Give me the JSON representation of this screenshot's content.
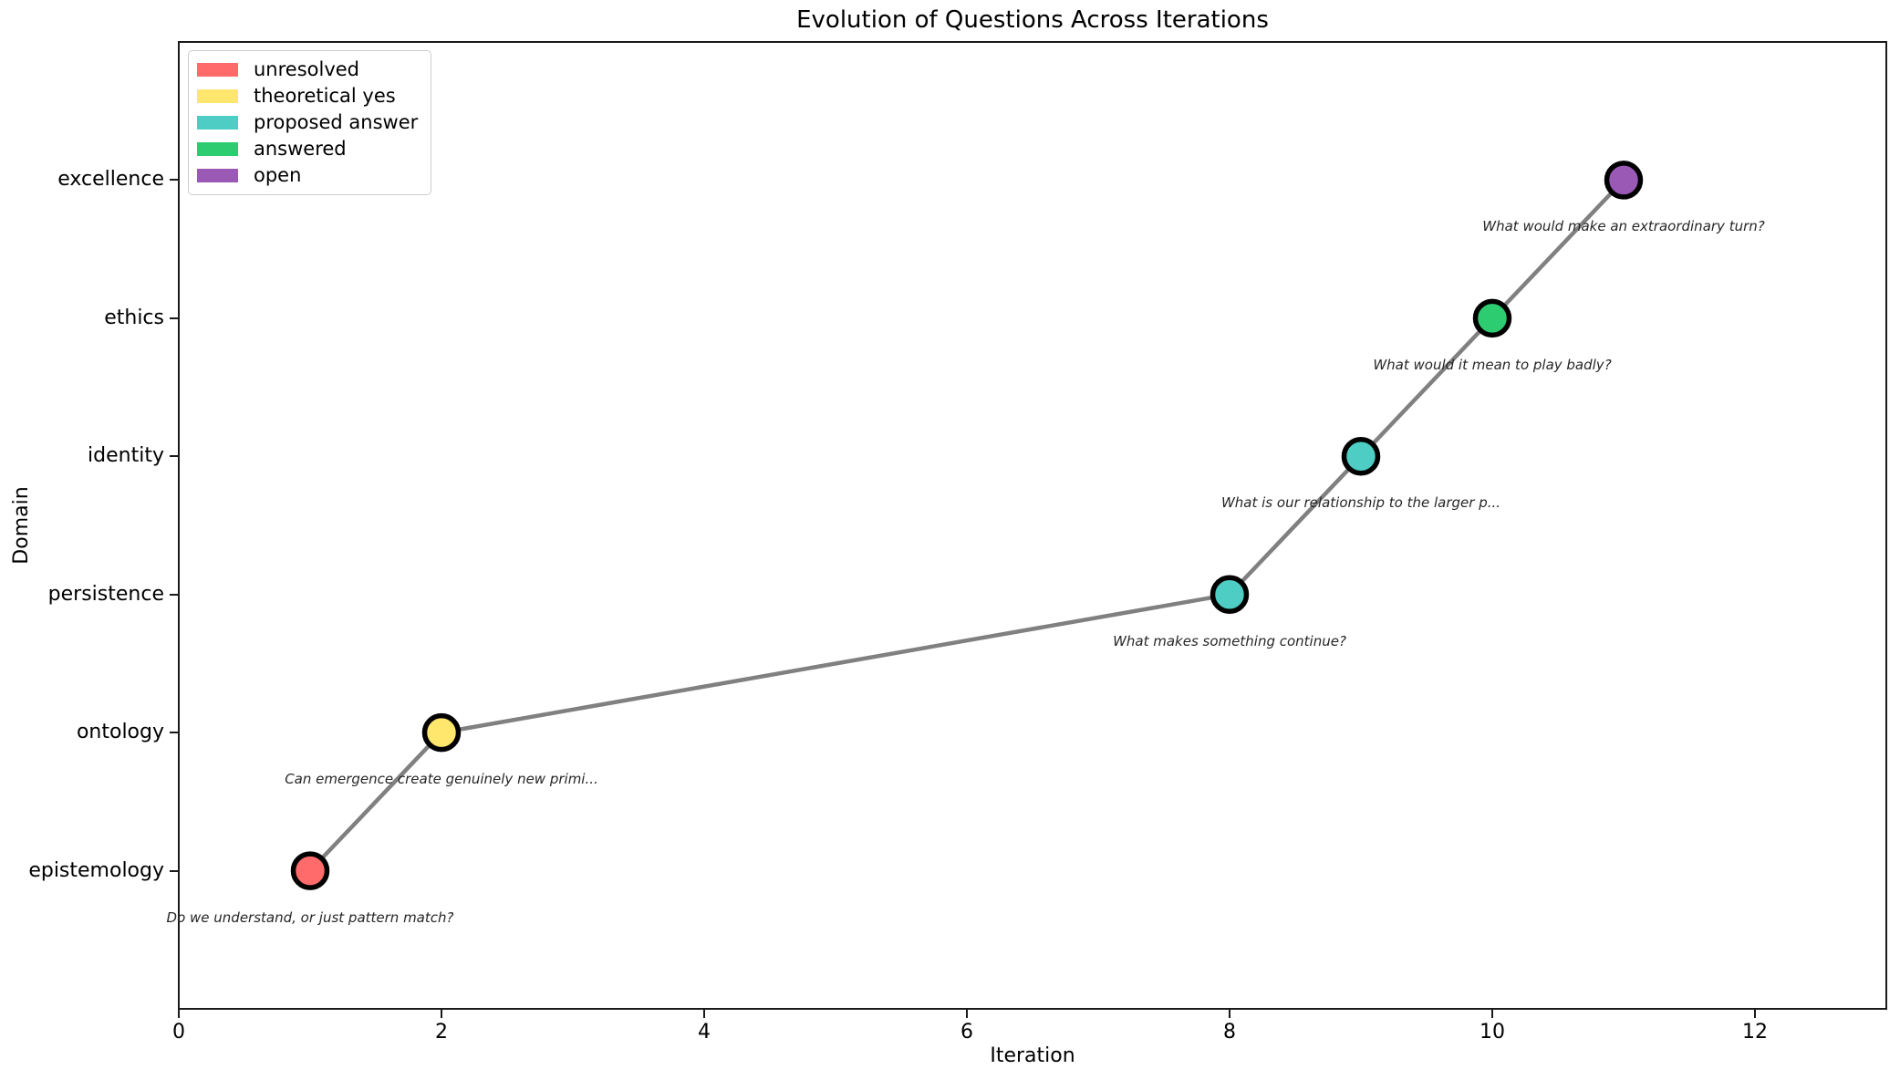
{
  "chart_data": {
    "type": "scatter",
    "title": "Evolution of Questions Across Iterations",
    "xlabel": "Iteration",
    "ylabel": "Domain",
    "xlim": [
      0,
      13
    ],
    "ylim": [
      -1,
      6
    ],
    "x_ticks": [
      0,
      2,
      4,
      6,
      8,
      10,
      12
    ],
    "y_categories": [
      "epistemology",
      "ontology",
      "persistence",
      "identity",
      "ethics",
      "excellence"
    ],
    "grid": false,
    "legend_position": "upper-left",
    "legend": [
      {
        "label": "unresolved",
        "color": "#FF6B6B"
      },
      {
        "label": "theoretical yes",
        "color": "#FFE66D"
      },
      {
        "label": "proposed answer",
        "color": "#4ECDC4"
      },
      {
        "label": "answered",
        "color": "#2ECC71"
      },
      {
        "label": "open",
        "color": "#9B59B6"
      }
    ],
    "line_color": "#808080",
    "marker_edge_color": "#000000",
    "annotation_color": "#262626",
    "points": [
      {
        "iteration": 1,
        "domain": "epistemology",
        "domain_index": 0,
        "status": "unresolved",
        "color": "#FF6B6B",
        "annotation": "Do we understand, or just pattern match?"
      },
      {
        "iteration": 2,
        "domain": "ontology",
        "domain_index": 1,
        "status": "theoretical yes",
        "color": "#FFE66D",
        "annotation": "Can emergence create genuinely new primi..."
      },
      {
        "iteration": 8,
        "domain": "persistence",
        "domain_index": 2,
        "status": "proposed answer",
        "color": "#4ECDC4",
        "annotation": "What makes something continue?"
      },
      {
        "iteration": 9,
        "domain": "identity",
        "domain_index": 3,
        "status": "proposed answer",
        "color": "#4ECDC4",
        "annotation": "What is our relationship to the larger p..."
      },
      {
        "iteration": 10,
        "domain": "ethics",
        "domain_index": 4,
        "status": "answered",
        "color": "#2ECC71",
        "annotation": "What would it mean to play badly?"
      },
      {
        "iteration": 11,
        "domain": "excellence",
        "domain_index": 5,
        "status": "open",
        "color": "#9B59B6",
        "annotation": "What would make an extraordinary turn?"
      }
    ]
  }
}
